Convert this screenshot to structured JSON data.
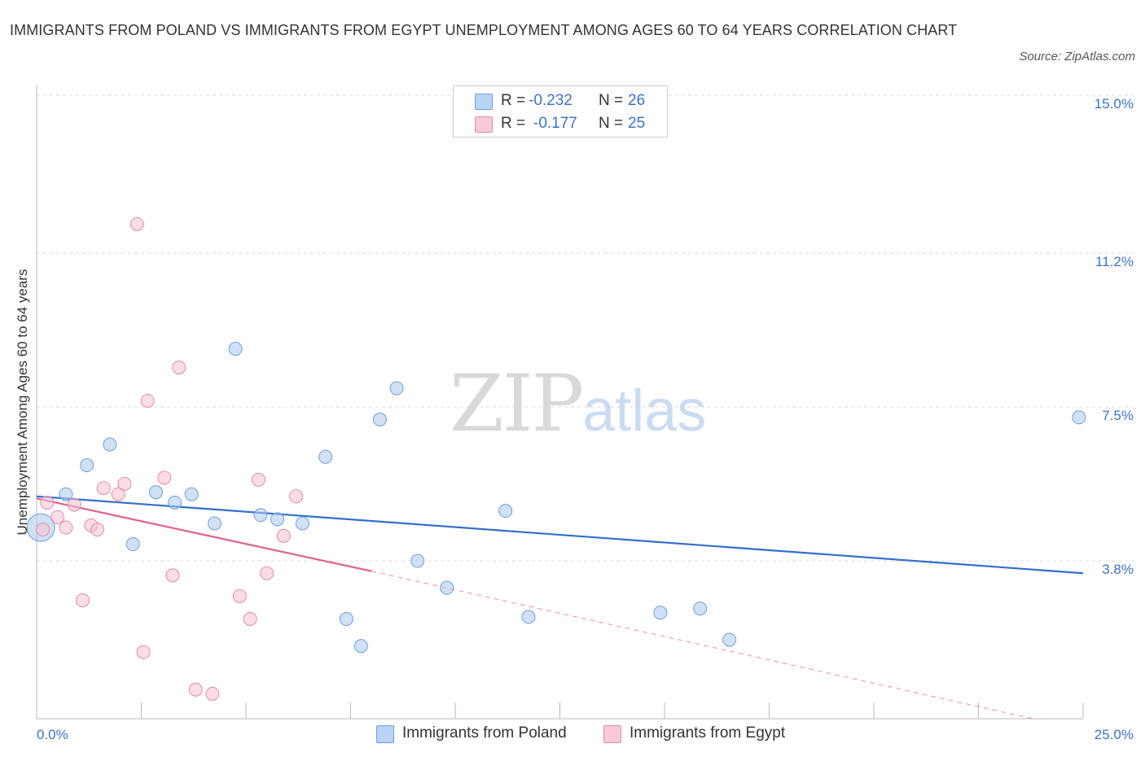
{
  "title": "IMMIGRANTS FROM POLAND VS IMMIGRANTS FROM EGYPT UNEMPLOYMENT AMONG AGES 60 TO 64 YEARS CORRELATION CHART",
  "source": "Source: ZipAtlas.com",
  "watermark": {
    "zip": "ZIP",
    "atlas": "atlas"
  },
  "legend": {
    "r_label": "R =",
    "n_label": "N =",
    "rows": [
      {
        "r": "-0.232",
        "n": "26",
        "color": "#b9d3f5",
        "border": "#6d9fdc"
      },
      {
        "r": "-0.177",
        "n": "25",
        "color": "#f9cad6",
        "border": "#e48aa3"
      }
    ]
  },
  "chart_data": {
    "type": "scatter",
    "title": "IMMIGRANTS FROM POLAND VS IMMIGRANTS FROM EGYPT UNEMPLOYMENT AMONG AGES 60 TO 64 YEARS CORRELATION CHART",
    "xlabel": "",
    "ylabel": "Unemployment Among Ages 60 to 64 years",
    "xlim": [
      0,
      25
    ],
    "ylim": [
      0,
      15
    ],
    "x_tick_labels": [
      "0.0%",
      "25.0%"
    ],
    "y_ticks": [
      3.8,
      7.5,
      11.2,
      15.0
    ],
    "y_tick_labels": [
      "3.8%",
      "7.5%",
      "11.2%",
      "15.0%"
    ],
    "grid": true,
    "legend_position": "top-center",
    "series": [
      {
        "name": "Immigrants from Poland",
        "color": "#a9c8ef",
        "stroke": "#6d9fdc",
        "line_color": "#2f6fcf",
        "trend": {
          "x": [
            0.0,
            25.0
          ],
          "y": [
            5.35,
            3.5
          ]
        },
        "points": [
          [
            0.1,
            4.6
          ],
          [
            0.7,
            5.4
          ],
          [
            1.2,
            6.1
          ],
          [
            1.75,
            6.6
          ],
          [
            2.3,
            4.2
          ],
          [
            2.85,
            5.45
          ],
          [
            3.3,
            5.2
          ],
          [
            3.7,
            5.4
          ],
          [
            4.25,
            4.7
          ],
          [
            4.75,
            8.9
          ],
          [
            5.35,
            4.9
          ],
          [
            5.75,
            4.8
          ],
          [
            6.35,
            4.7
          ],
          [
            6.9,
            6.3
          ],
          [
            7.4,
            2.4
          ],
          [
            7.75,
            1.75
          ],
          [
            8.2,
            7.2
          ],
          [
            8.6,
            7.95
          ],
          [
            9.1,
            3.8
          ],
          [
            9.8,
            3.15
          ],
          [
            11.2,
            5.0
          ],
          [
            11.75,
            2.45
          ],
          [
            14.9,
            2.55
          ],
          [
            15.85,
            2.65
          ],
          [
            16.55,
            1.9
          ],
          [
            24.9,
            7.25
          ]
        ]
      },
      {
        "name": "Immigrants from Egypt",
        "color": "#f7c1cf",
        "stroke": "#e48aa3",
        "line_color": "#e0608c",
        "trend": {
          "x": [
            0.0,
            8.0
          ],
          "y": [
            5.3,
            3.55
          ]
        },
        "trend_extension": {
          "x": [
            8.0,
            23.8
          ],
          "y": [
            3.55,
            0.0
          ]
        },
        "points": [
          [
            0.25,
            5.2
          ],
          [
            0.5,
            4.85
          ],
          [
            0.7,
            4.6
          ],
          [
            0.9,
            5.15
          ],
          [
            1.1,
            2.85
          ],
          [
            1.3,
            4.65
          ],
          [
            1.45,
            4.55
          ],
          [
            1.6,
            5.55
          ],
          [
            1.95,
            5.4
          ],
          [
            2.1,
            5.65
          ],
          [
            2.4,
            11.9
          ],
          [
            2.55,
            1.6
          ],
          [
            2.65,
            7.65
          ],
          [
            3.05,
            5.8
          ],
          [
            3.25,
            3.45
          ],
          [
            3.4,
            8.45
          ],
          [
            3.8,
            0.7
          ],
          [
            4.2,
            0.6
          ],
          [
            4.85,
            2.95
          ],
          [
            5.1,
            2.4
          ],
          [
            5.3,
            5.75
          ],
          [
            5.5,
            3.5
          ],
          [
            5.9,
            4.4
          ],
          [
            6.2,
            5.35
          ],
          [
            0.15,
            4.55
          ]
        ]
      }
    ]
  },
  "bottom_legend": [
    "Immigrants from Poland",
    "Immigrants from Egypt"
  ]
}
